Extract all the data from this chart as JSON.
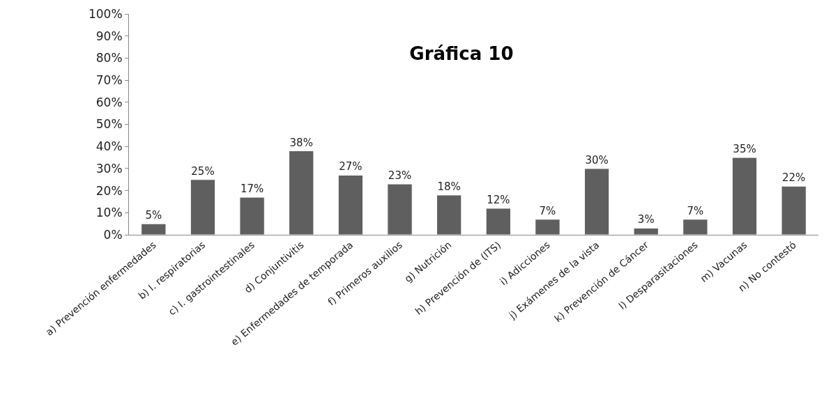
{
  "chart_data": {
    "type": "bar",
    "title": "Gráfica 10",
    "categories": [
      "a) Prevención enfermedades",
      "b) I. respiratorias",
      "c) I. gastrointestinales",
      "d) Conjuntivitis",
      "e) Enfermedades de temporada",
      "f) Primeros auxilios",
      "g) Nutrición",
      "h) Prevención de (ITS)",
      "i) Adicciones",
      "j) Exámenes de la vista",
      "k) Prevención de Cáncer",
      "l) Desparasitaciones",
      "m) Vacunas",
      "n) No contestó"
    ],
    "values": [
      5,
      25,
      17,
      38,
      27,
      23,
      18,
      12,
      7,
      30,
      3,
      7,
      35,
      22
    ],
    "value_labels": [
      "5%",
      "25%",
      "17%",
      "38%",
      "27%",
      "23%",
      "18%",
      "12%",
      "7%",
      "30%",
      "3%",
      "7%",
      "35%",
      "22%"
    ],
    "color": "#5f5f5f",
    "ylim": [
      0,
      100
    ],
    "yticks": [
      {
        "value": 0,
        "label": "0%"
      },
      {
        "value": 10,
        "label": "10%"
      },
      {
        "value": 20,
        "label": "20%"
      },
      {
        "value": 30,
        "label": "30%"
      },
      {
        "value": 40,
        "label": "40%"
      },
      {
        "value": 50,
        "label": "50%"
      },
      {
        "value": 60,
        "label": "60%"
      },
      {
        "value": 70,
        "label": "70%"
      },
      {
        "value": 80,
        "label": "80%"
      },
      {
        "value": 90,
        "label": "90%"
      },
      {
        "value": 100,
        "label": "100%"
      }
    ],
    "grid": false,
    "legend": false
  }
}
